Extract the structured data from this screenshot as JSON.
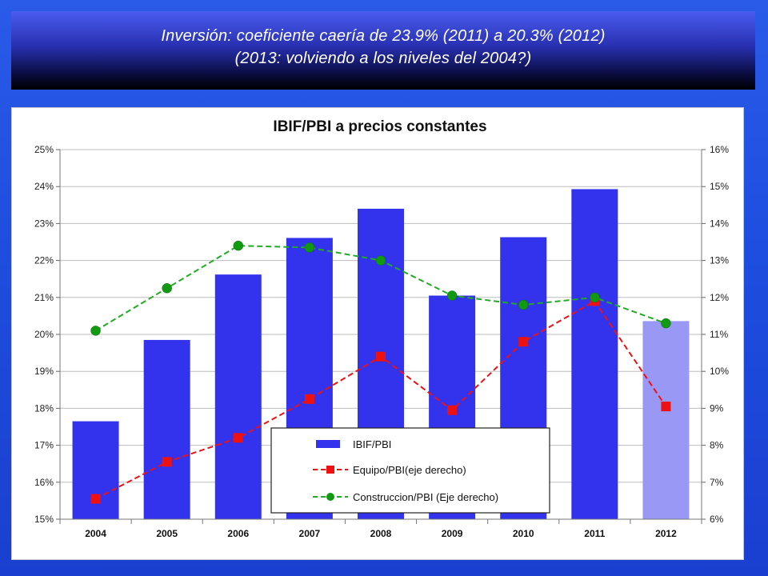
{
  "slide": {
    "title_line1": "Inversión: coeficiente caería de 23.9% (2011) a 20.3% (2012)",
    "title_line2": "(2013: volviendo a los niveles del 2004?)"
  },
  "colors": {
    "background": "#1e4fe0",
    "bar": "#3333ee",
    "bar_estimate": "#9999f5",
    "equipo": "#ee1111",
    "construccion": "#119911",
    "construccion_line": "#22aa22"
  },
  "chart_data": {
    "type": "bar",
    "title": "IBIF/PBI a precios constantes",
    "categories": [
      "2004",
      "2005",
      "2006",
      "2007",
      "2008",
      "2009",
      "2010",
      "2011",
      "2012"
    ],
    "y_left": {
      "ylim": [
        15,
        25
      ],
      "ticks": [
        "15%",
        "16%",
        "17%",
        "18%",
        "19%",
        "20%",
        "21%",
        "22%",
        "23%",
        "24%",
        "25%"
      ]
    },
    "y_right": {
      "ylim": [
        6,
        16
      ],
      "ticks": [
        "6%",
        "7%",
        "8%",
        "9%",
        "10%",
        "11%",
        "12%",
        "13%",
        "14%",
        "15%",
        "16%"
      ]
    },
    "grid": true,
    "legend_position": "bottom-center",
    "series": [
      {
        "name": "IBIF/PBI",
        "type": "bar",
        "axis": "left",
        "values": [
          17.65,
          19.85,
          21.62,
          22.61,
          23.4,
          21.05,
          22.63,
          23.93,
          20.36
        ],
        "highlight_last": true
      },
      {
        "name": "Equipo/PBI(eje derecho)",
        "type": "line",
        "axis": "right",
        "marker": "square",
        "dashed": true,
        "values": [
          6.55,
          7.55,
          8.2,
          9.25,
          10.4,
          8.95,
          10.8,
          11.9,
          9.05
        ]
      },
      {
        "name": "Construccion/PBI (Eje derecho)",
        "type": "line",
        "axis": "right",
        "marker": "circle",
        "dashed": true,
        "values": [
          11.1,
          12.25,
          13.4,
          13.35,
          13.0,
          12.05,
          11.8,
          12.0,
          11.3
        ]
      }
    ]
  }
}
